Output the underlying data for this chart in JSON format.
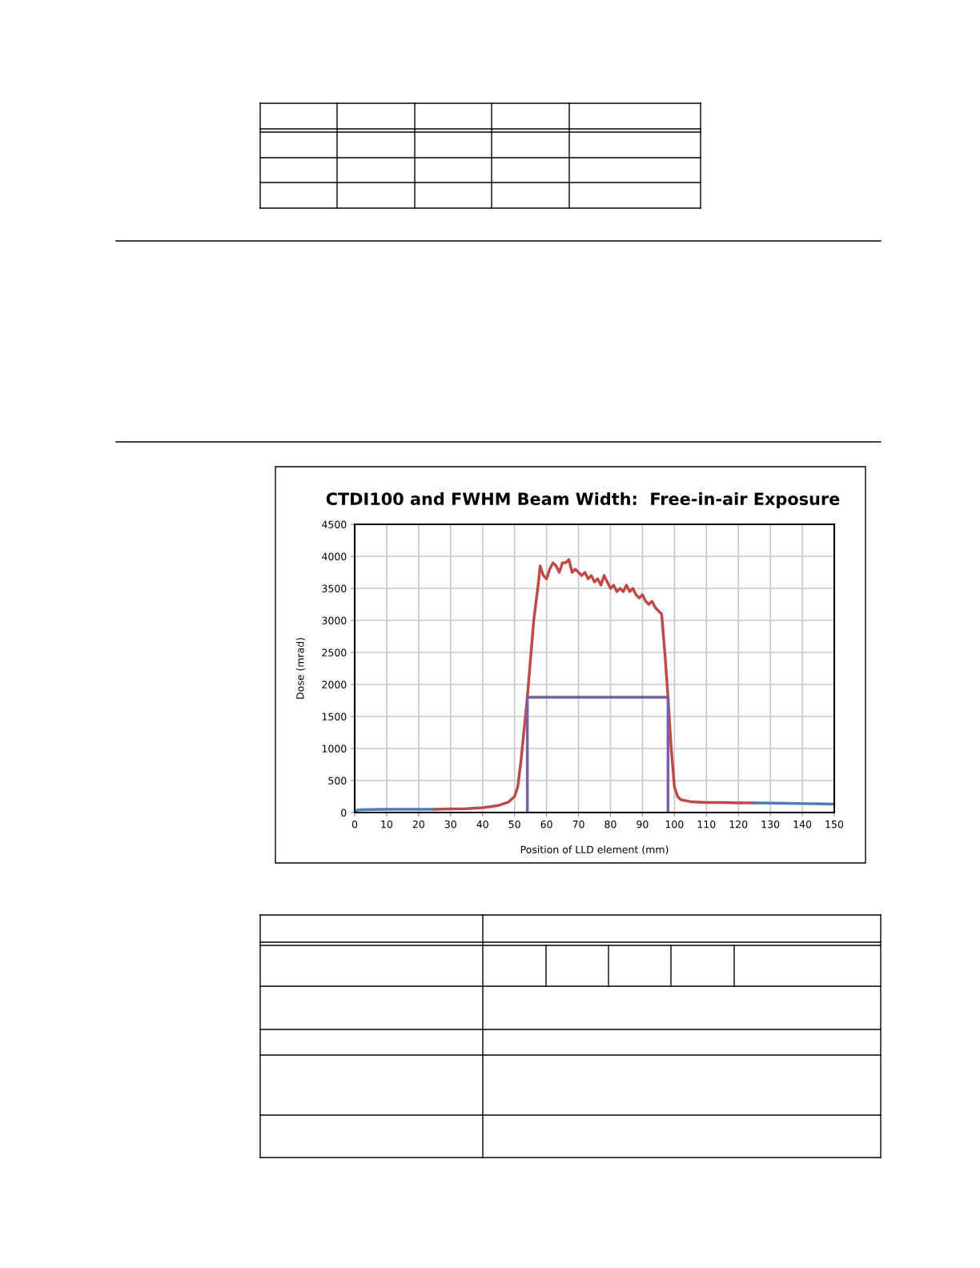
{
  "chart_data": {
    "type": "line",
    "title": "CTDI100 and FWHM Beam Width:  Free-in-air Exposure",
    "xlabel": "Position of LLD element (mm)",
    "ylabel": "Dose (mrad)",
    "series": [
      {
        "color": "#4a7ebb",
        "x": [
          0,
          2,
          10,
          20,
          25
        ],
        "values": [
          30,
          45,
          50,
          50,
          50
        ]
      },
      {
        "color": "#be4b48",
        "x": [
          25,
          30,
          35,
          40,
          45,
          48,
          50,
          51,
          52,
          53,
          54,
          55,
          56,
          57,
          57.5,
          58,
          59,
          60,
          61,
          62,
          63,
          64,
          65,
          66,
          67,
          68,
          69,
          70,
          71,
          72,
          73,
          74,
          75,
          76,
          77,
          78,
          79,
          80,
          81,
          82,
          83,
          84,
          85,
          86,
          87,
          88,
          89,
          90,
          91,
          92,
          93,
          94,
          95,
          96,
          97,
          98,
          99,
          100,
          101,
          102,
          105,
          110,
          115,
          120,
          125
        ],
        "values": [
          50,
          55,
          60,
          75,
          110,
          160,
          250,
          400,
          800,
          1300,
          1800,
          2400,
          3000,
          3400,
          3600,
          3850,
          3700,
          3650,
          3800,
          3900,
          3850,
          3750,
          3900,
          3900,
          3950,
          3750,
          3800,
          3750,
          3700,
          3750,
          3650,
          3700,
          3600,
          3650,
          3550,
          3700,
          3600,
          3500,
          3550,
          3450,
          3500,
          3450,
          3550,
          3450,
          3500,
          3400,
          3350,
          3400,
          3300,
          3250,
          3300,
          3200,
          3150,
          3100,
          2500,
          1800,
          1000,
          400,
          250,
          200,
          170,
          155,
          155,
          150,
          150
        ]
      },
      {
        "color": "#4a7ebb",
        "x": [
          125,
          135,
          150
        ],
        "values": [
          150,
          145,
          130
        ]
      },
      {
        "color": "#7a5fa8",
        "x": [
          54,
          54,
          98,
          98
        ],
        "values": [
          0,
          1800,
          1800,
          0
        ]
      }
    ],
    "xlim": [
      0,
      150
    ],
    "xticks": [
      0,
      10,
      20,
      30,
      40,
      50,
      60,
      70,
      80,
      90,
      100,
      110,
      120,
      130,
      140,
      150
    ],
    "ylim": [
      0,
      4500
    ],
    "yticks": [
      0,
      500,
      1000,
      1500,
      2000,
      2500,
      3000,
      3500,
      4000,
      4500
    ],
    "grid": true,
    "marker": "none",
    "line_style": "solid"
  }
}
